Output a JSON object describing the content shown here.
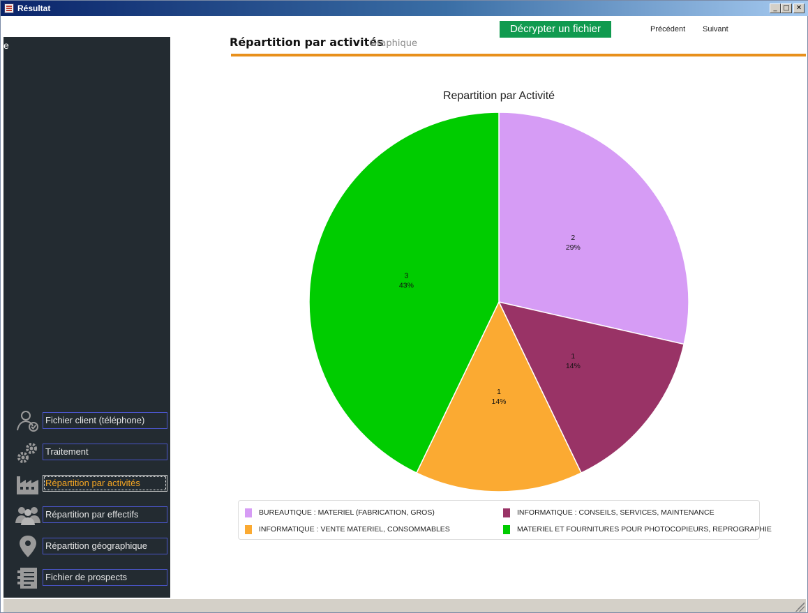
{
  "window": {
    "title": "Résultat",
    "buttons": {
      "minimize": "_",
      "maximize": "□",
      "close": "✕"
    }
  },
  "sidebar": {
    "cut_text": "e",
    "items": [
      {
        "label": "Fichier client (téléphone)",
        "icon": "user-check-icon",
        "active": false
      },
      {
        "label": "Traitement",
        "icon": "gears-icon",
        "active": false
      },
      {
        "label": "Répartition par activités",
        "icon": "factory-icon",
        "active": true
      },
      {
        "label": "Répartition par effectifs",
        "icon": "people-icon",
        "active": false
      },
      {
        "label": "Répartition géographique",
        "icon": "map-pin-icon",
        "active": false
      },
      {
        "label": "Fichier de prospects",
        "icon": "document-list-icon",
        "active": false
      }
    ]
  },
  "toolbar": {
    "decrypt_label": "Décrypter un fichier",
    "prev_label": "Précédent",
    "next_label": "Suivant"
  },
  "page": {
    "title": "Répartition par activités",
    "subtitle": "Graphique"
  },
  "colors": {
    "accent_rule": "#e8901c",
    "decrypt_button": "#109a4f",
    "sidebar_bg": "#232b31",
    "active_nav": "#f5a623"
  },
  "chart_data": {
    "type": "pie",
    "title": "Repartition par Activité",
    "legend_position": "bottom",
    "slices": [
      {
        "name": "BUREAUTIQUE : MATERIEL (FABRICATION, GROS)",
        "value": 2,
        "percent_label": "29%",
        "color": "#d69cf5"
      },
      {
        "name": "INFORMATIQUE : CONSEILS, SERVICES, MAINTENANCE",
        "value": 1,
        "percent_label": "14%",
        "color": "#993366"
      },
      {
        "name": "INFORMATIQUE : VENTE MATERIEL, CONSOMMABLES",
        "value": 1,
        "percent_label": "14%",
        "color": "#fbaa32"
      },
      {
        "name": "MATERIEL ET FOURNITURES POUR PHOTOCOPIEURS, REPROGRAPHIE",
        "value": 3,
        "percent_label": "43%",
        "color": "#00cc00"
      }
    ]
  }
}
